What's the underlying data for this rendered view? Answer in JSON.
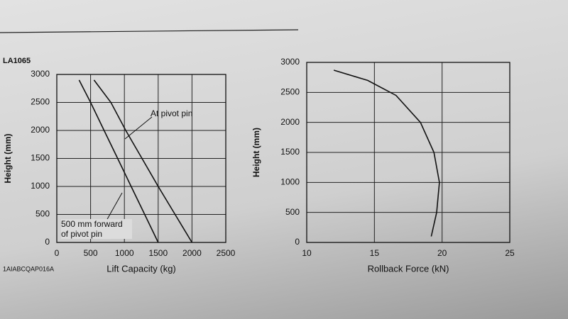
{
  "chart_data": [
    {
      "type": "line",
      "title": "LA1065",
      "figure_code": "1AIABCQAP016A",
      "xlabel": "Lift Capacity (kg)",
      "ylabel": "Height (mm)",
      "xlim": [
        0,
        2500
      ],
      "ylim": [
        0,
        3000
      ],
      "xticks": [
        0,
        500,
        1000,
        1500,
        2000,
        2500
      ],
      "yticks": [
        0,
        500,
        1000,
        1500,
        2000,
        2500,
        3000
      ],
      "grid": true,
      "series": [
        {
          "name": "At pivot pin",
          "color": "#111111",
          "x": [
            2000,
            1750,
            1500,
            1260,
            1020,
            800,
            550
          ],
          "values": [
            0,
            500,
            1000,
            1500,
            2000,
            2500,
            2900
          ]
        },
        {
          "name": "500 mm forward of pivot pin",
          "color": "#111111",
          "x": [
            1500,
            1300,
            1100,
            900,
            700,
            500,
            330
          ],
          "values": [
            0,
            500,
            1000,
            1500,
            2000,
            2500,
            2900
          ]
        }
      ]
    },
    {
      "type": "line",
      "xlabel": "Rollback Force (kN)",
      "ylabel": "Height (mm)",
      "xlim": [
        10,
        25
      ],
      "ylim": [
        0,
        3000
      ],
      "xticks": [
        10,
        15,
        20,
        25
      ],
      "yticks": [
        0,
        500,
        1000,
        1500,
        2000,
        2500,
        3000
      ],
      "grid": true,
      "series": [
        {
          "color": "#111111",
          "x": [
            19.2,
            19.6,
            19.8,
            19.4,
            18.4,
            16.6,
            14.5,
            12
          ],
          "values": [
            100,
            500,
            1000,
            1500,
            2000,
            2450,
            2700,
            2870
          ]
        }
      ]
    }
  ]
}
